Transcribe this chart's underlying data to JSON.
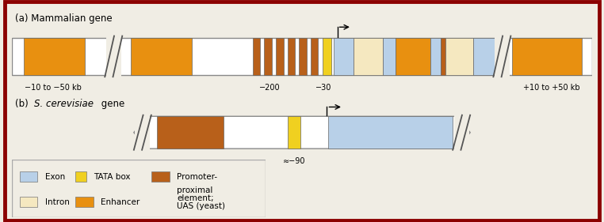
{
  "bg_color": "#f0ede4",
  "border_color": "#8b0000",
  "title_a": "(a) Mammalian gene",
  "title_b_prefix": "(b) ",
  "title_b_italic": "S. cerevisiae",
  "title_b_suffix": " gene",
  "colors": {
    "exon": "#b8d0e8",
    "tata": "#f0d020",
    "promoter_proximal": "#b8601a",
    "intron": "#f5e8c0",
    "enhancer": "#e89010",
    "track_bg": "#ffffff",
    "track_border": "#888888"
  },
  "figsize": [
    7.62,
    2.81
  ],
  "dpi": 100
}
